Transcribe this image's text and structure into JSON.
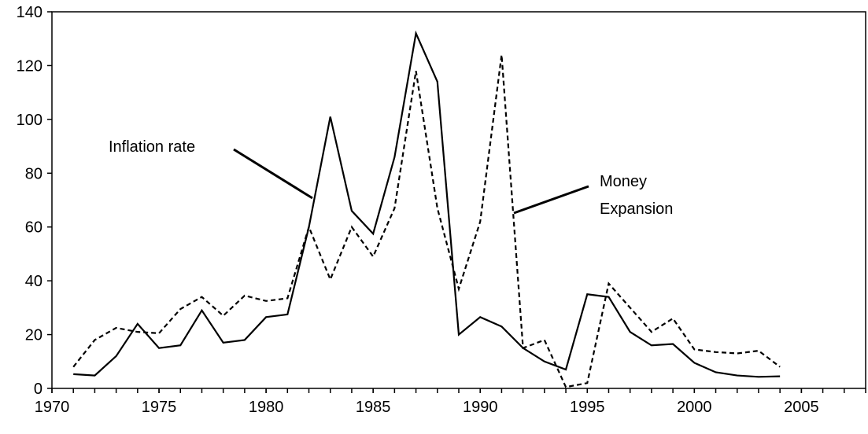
{
  "chart_data": {
    "type": "line",
    "x": [
      1971,
      1972,
      1973,
      1974,
      1975,
      1976,
      1977,
      1978,
      1979,
      1980,
      1981,
      1982,
      1983,
      1984,
      1985,
      1986,
      1987,
      1988,
      1989,
      1990,
      1991,
      1992,
      1993,
      1994,
      1995,
      1996,
      1997,
      1998,
      1999,
      2000,
      2001,
      2002,
      2003,
      2004
    ],
    "series": [
      {
        "name": "Inflation rate",
        "color": "#000000",
        "dashed": false,
        "values": [
          5.3,
          4.8,
          12,
          24,
          15,
          16,
          29,
          17,
          18,
          26.5,
          27.5,
          60,
          101,
          66,
          57.5,
          86,
          132,
          114,
          20,
          26.5,
          23,
          15,
          10,
          7,
          35,
          34,
          21,
          16,
          16.5,
          9.5,
          6,
          4.8,
          4.3,
          4.5
        ]
      },
      {
        "name": "Money Expansion",
        "color": "#000000",
        "dashed": true,
        "values": [
          8,
          18,
          22.5,
          21,
          20.5,
          29.5,
          34,
          27,
          34.5,
          32.5,
          33.5,
          60,
          40.5,
          60,
          49,
          67,
          118,
          67,
          37,
          62,
          124,
          15,
          18,
          0.5,
          2,
          39,
          30,
          21,
          26,
          14.5,
          13.5,
          13,
          14,
          8
        ]
      }
    ],
    "xlim": [
      1970,
      2008
    ],
    "xticks": [
      1970,
      1975,
      1980,
      1985,
      1990,
      1995,
      2000,
      2005
    ],
    "ylim": [
      0,
      140
    ],
    "yticks": [
      0,
      20,
      40,
      60,
      80,
      100,
      120,
      140
    ]
  }
}
